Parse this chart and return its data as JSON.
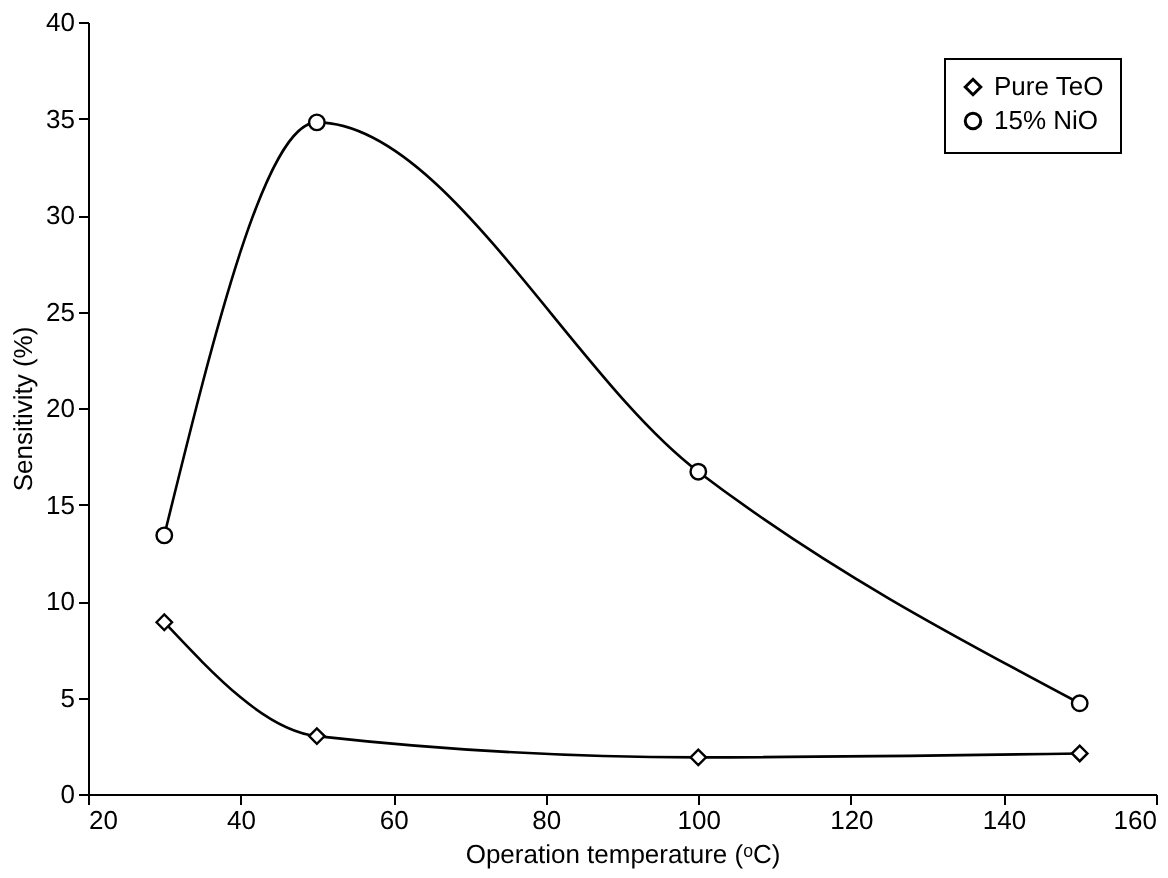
{
  "chart_data": {
    "type": "line",
    "xlabel": "Operation temperature (ᵒC)",
    "ylabel": "Sensitivity (%)",
    "xlim": [
      20,
      160
    ],
    "xticks": [
      20,
      40,
      60,
      80,
      100,
      120,
      140,
      160
    ],
    "ylim": [
      0,
      40
    ],
    "yticks": [
      0,
      5,
      10,
      15,
      20,
      25,
      30,
      35,
      40
    ],
    "grid": false,
    "legend": "top right",
    "line_style": "solid",
    "series": [
      {
        "name": "Pure TeO",
        "color": "#000000",
        "marker": "diamond",
        "x": [
          30,
          50,
          100,
          150
        ],
        "values": [
          8.9,
          3.0,
          1.9,
          2.1
        ]
      },
      {
        "name": "15% NiO",
        "color": "#000000",
        "marker": "circle",
        "x": [
          30,
          50,
          100,
          150
        ],
        "values": [
          13.4,
          34.8,
          16.7,
          4.7
        ]
      }
    ]
  }
}
